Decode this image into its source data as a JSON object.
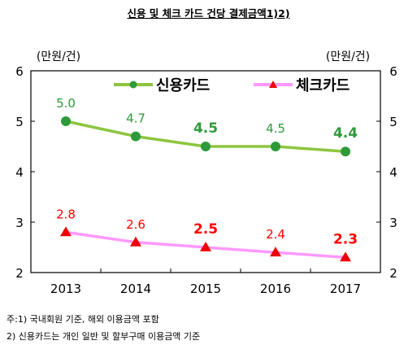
{
  "chart_data": {
    "type": "line",
    "title": "신용 및 체크 카드 건당 결제금액1)2)",
    "x": [
      "2013",
      "2014",
      "2015",
      "2016",
      "2017"
    ],
    "series": [
      {
        "name": "신용카드",
        "values": [
          5.0,
          4.7,
          4.5,
          4.5,
          4.4
        ],
        "labels": [
          "5.0",
          "4.7",
          "4.5",
          "4.5",
          "4.4"
        ],
        "bold": [
          false,
          false,
          true,
          false,
          true
        ],
        "color": "#8dc63f",
        "label_color": "#2e9a3a",
        "marker": "circle"
      },
      {
        "name": "체크카드",
        "values": [
          2.8,
          2.6,
          2.5,
          2.4,
          2.3
        ],
        "labels": [
          "2.8",
          "2.6",
          "2.5",
          "2.4",
          "2.3"
        ],
        "bold": [
          false,
          false,
          true,
          false,
          true
        ],
        "color": "#ff99ff",
        "label_color": "#ff0000",
        "marker": "triangle"
      }
    ],
    "ylim": [
      2,
      6
    ],
    "yticks": [
      "2",
      "3",
      "4",
      "5",
      "6"
    ],
    "ylabel_left": "(만원/건)",
    "ylabel_right": "(만원/건)",
    "legend_position": "top",
    "grid": false
  },
  "notes": [
    "주:1)  국내회원  기준,  해외  이용금액  포함",
    "2) 신용카드는 개인 일반 및 할부구매 이용금액 기준"
  ]
}
